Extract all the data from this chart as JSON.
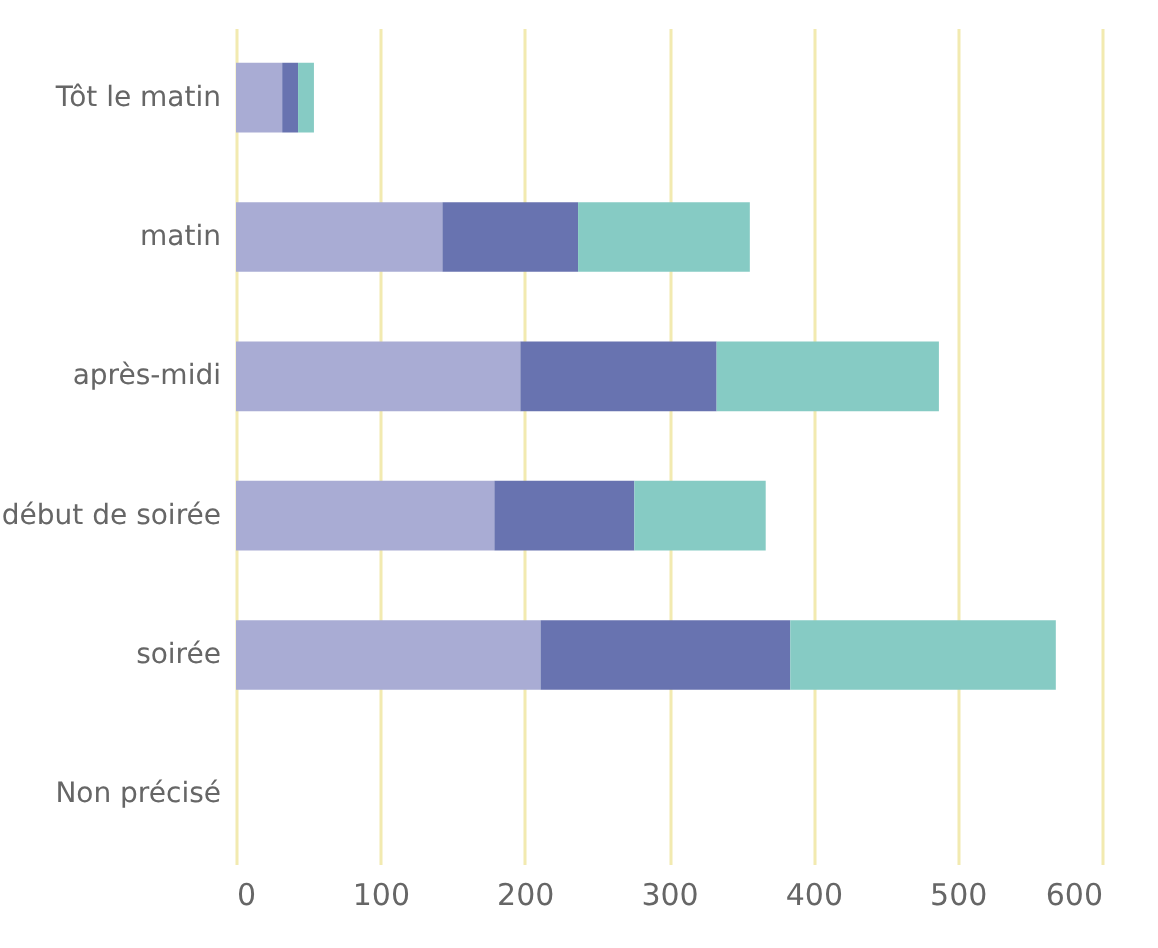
{
  "chart_data": {
    "type": "bar",
    "orientation": "horizontal",
    "stacked": true,
    "categories": [
      "Tôt le matin",
      "matin",
      "après-midi",
      "début de soirée",
      "soirée",
      "Non précisé"
    ],
    "series": [
      {
        "color": "#a9acd4",
        "values": [
          32,
          143,
          197,
          179,
          211,
          null
        ]
      },
      {
        "color": "#6873b0",
        "values": [
          11,
          94,
          136,
          97,
          173,
          0
        ]
      },
      {
        "color": "#86cbc4",
        "values": [
          11,
          119,
          154,
          91,
          184,
          0
        ]
      }
    ],
    "xlim": [
      0,
      600
    ],
    "xticks": [
      0,
      100,
      200,
      300,
      400,
      500,
      600
    ],
    "grid": "x",
    "legend": false
  }
}
